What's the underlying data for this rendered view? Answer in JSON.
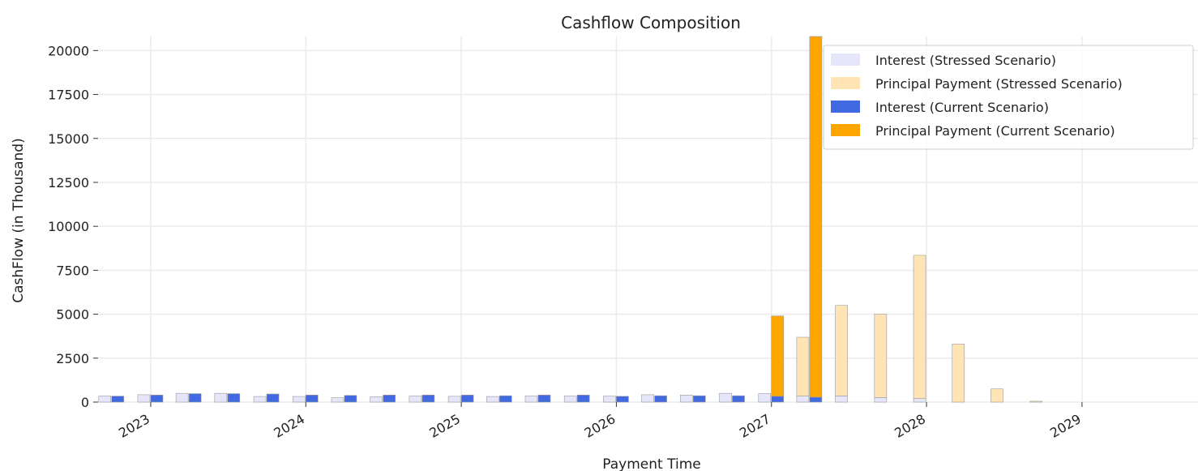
{
  "chart_data": {
    "type": "bar",
    "title": "Cashflow Composition",
    "xlabel": "Payment Time",
    "ylabel": "CashFlow (in Thousand)",
    "ylim": [
      0,
      20800
    ],
    "xlim": [
      "2022-09-01",
      "2029-10-01"
    ],
    "grid": true,
    "legend_position": "top-right",
    "stacked": true,
    "yticks": [
      0,
      2500,
      5000,
      7500,
      10000,
      12500,
      15000,
      17500,
      20000
    ],
    "ytick_labels": [
      "0",
      "2500",
      "5000",
      "7500",
      "10000",
      "12500",
      "15000",
      "17500",
      "20000"
    ],
    "xticks": [
      "2023-01-01",
      "2024-01-01",
      "2025-01-01",
      "2026-01-01",
      "2027-01-01",
      "2028-01-01",
      "2029-01-01"
    ],
    "xtick_labels": [
      "2023",
      "2024",
      "2025",
      "2026",
      "2027",
      "2028",
      "2029"
    ],
    "x": [
      "2022-10",
      "2023-01",
      "2023-04",
      "2023-07",
      "2023-10",
      "2024-01",
      "2024-04",
      "2024-07",
      "2024-10",
      "2025-01",
      "2025-04",
      "2025-07",
      "2025-10",
      "2026-01",
      "2026-04",
      "2026-07",
      "2026-10",
      "2027-01",
      "2027-04",
      "2027-07",
      "2027-10",
      "2028-01",
      "2028-04",
      "2028-07",
      "2028-10"
    ],
    "groups": [
      {
        "name": "Stressed Scenario",
        "series": [
          {
            "name": "Interest (Stressed Scenario)",
            "color": "#e6e6fa",
            "values": [
              350,
              420,
              500,
              500,
              320,
              320,
              250,
              300,
              350,
              330,
              320,
              350,
              350,
              340,
              420,
              400,
              500,
              480,
              340,
              350,
              260,
              200,
              0,
              0,
              0
            ]
          },
          {
            "name": "Principal Payment (Stressed Scenario)",
            "color": "#ffe4b5",
            "values": [
              0,
              0,
              0,
              0,
              0,
              0,
              0,
              0,
              0,
              0,
              0,
              0,
              0,
              0,
              0,
              0,
              0,
              0,
              3350,
              5150,
              4750,
              8150,
              3300,
              750,
              50
            ]
          }
        ]
      },
      {
        "name": "Current Scenario",
        "series": [
          {
            "name": "Interest (Current Scenario)",
            "color": "#4169e1",
            "values": [
              340,
              400,
              480,
              480,
              460,
              400,
              380,
              400,
              400,
              400,
              360,
              400,
              400,
              330,
              360,
              360,
              360,
              330,
              280,
              0,
              0,
              0,
              0,
              0,
              0
            ]
          },
          {
            "name": "Principal Payment (Current Scenario)",
            "color": "#ffa500",
            "values": [
              0,
              0,
              0,
              0,
              0,
              0,
              0,
              0,
              0,
              0,
              0,
              0,
              0,
              0,
              0,
              0,
              0,
              4570,
              20520,
              0,
              0,
              0,
              0,
              0,
              0
            ]
          }
        ]
      }
    ],
    "legend": [
      {
        "label": "Interest (Stressed Scenario)",
        "color": "#e6e6fa"
      },
      {
        "label": "Principal Payment (Stressed Scenario)",
        "color": "#ffe4b5"
      },
      {
        "label": "Interest (Current Scenario)",
        "color": "#4169e1"
      },
      {
        "label": "Principal Payment (Current Scenario)",
        "color": "#ffa500"
      }
    ]
  }
}
